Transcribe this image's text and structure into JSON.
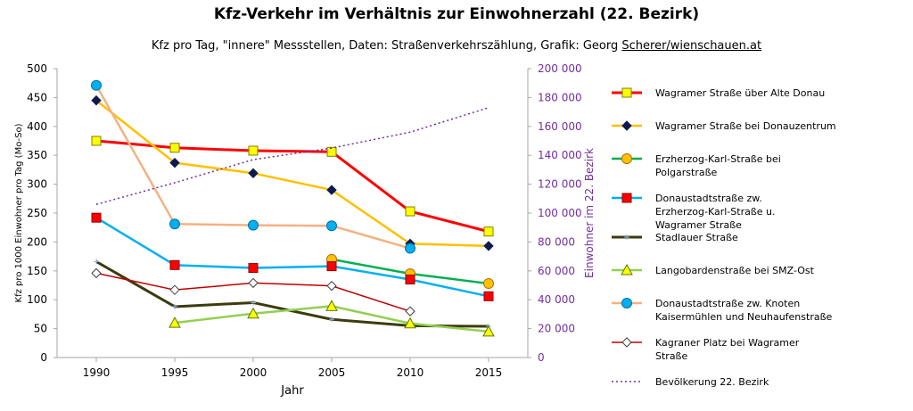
{
  "chart_data": {
    "type": "line",
    "title": "Kfz-Verkehr im Verhältnis zur Einwohnerzahl (22. Bezirk)",
    "subtitle_main": "Kfz pro Tag, \"innere\" Messstellen, Daten: Straßenverkehrszählung, Grafik: Georg",
    "subtitle_credit": "Scherer/wienschauen.at",
    "xlabel": "Jahr",
    "ylabel_left": "Kfz pro 1000 Einwohner pro Tag (Mo-So)",
    "ylabel_right": "Einwohner im 22. Bezirk",
    "x": [
      1990,
      1995,
      2000,
      2005,
      2010,
      2015
    ],
    "x_tick_labels": [
      "1990",
      "1995",
      "2000",
      "2005",
      "2010",
      "2015"
    ],
    "ylim_left": [
      0,
      500
    ],
    "y_ticks_left": [
      "0",
      "50",
      "100",
      "150",
      "200",
      "250",
      "300",
      "350",
      "400",
      "450",
      "500"
    ],
    "ylim_right": [
      0,
      200000
    ],
    "y_ticks_right": [
      "0",
      "20 000",
      "40 000",
      "60 000",
      "80 000",
      "100 000",
      "120 000",
      "140 000",
      "160 000",
      "180 000",
      "200 000"
    ],
    "grid": false,
    "legend_position": "right",
    "series": [
      {
        "name": "Wagramer Straße über Alte Donau",
        "axis": "left",
        "color": "#ff0000",
        "marker": "square",
        "marker_fill": "#ffff00",
        "marker_stroke": "#7f7f00",
        "line_width": 3,
        "values": [
          375,
          363,
          358,
          356,
          253,
          218
        ]
      },
      {
        "name": "Wagramer Straße bei Donauzentrum",
        "axis": "left",
        "color": "#ffc000",
        "marker": "diamond",
        "marker_fill": "#0d1a4d",
        "marker_stroke": "#0d1a4d",
        "line_width": 2.5,
        "values": [
          445,
          337,
          319,
          290,
          197,
          193
        ]
      },
      {
        "name": "Erzherzog-Karl-Straße bei Polgarstraße",
        "axis": "left",
        "color": "#00b050",
        "marker": "circle",
        "marker_fill": "#ffc000",
        "marker_stroke": "#b07000",
        "line_width": 2.5,
        "values": [
          null,
          null,
          null,
          170,
          145,
          128
        ]
      },
      {
        "name": "Donaustadtstraße zw. Erzherzog-Karl-Straße u. Wagramer Straße",
        "axis": "left",
        "color": "#00b0f0",
        "marker": "square",
        "marker_fill": "#ff0000",
        "marker_stroke": "#900000",
        "line_width": 2.5,
        "values": [
          242,
          160,
          155,
          158,
          135,
          106
        ]
      },
      {
        "name": "Stadlauer Straße",
        "axis": "left",
        "color": "#3b3b0f",
        "marker": "star",
        "marker_fill": "#8fb4d9",
        "marker_stroke": "#8fb4d9",
        "line_width": 3,
        "values": [
          166,
          88,
          95,
          66,
          55,
          54
        ]
      },
      {
        "name": "Langobardenstraße bei SMZ-Ost",
        "axis": "left",
        "color": "#92d050",
        "marker": "triangle",
        "marker_fill": "#ffff00",
        "marker_stroke": "#5a7a00",
        "line_width": 2.5,
        "values": [
          null,
          60,
          76,
          89,
          59,
          45
        ]
      },
      {
        "name": "Donaustadtstraße zw. Knoten Kaisermühlen und Neuhaufenstraße",
        "axis": "left",
        "color": "#f4b183",
        "marker": "circle",
        "marker_fill": "#00b0f0",
        "marker_stroke": "#0070a0",
        "line_width": 2.5,
        "values": [
          471,
          231,
          229,
          228,
          189,
          null
        ]
      },
      {
        "name": "Kagraner Platz bei Wagramer Straße",
        "axis": "left",
        "color": "#c00000",
        "marker": "diamond",
        "marker_fill": "#ffffff",
        "marker_stroke": "#404040",
        "line_width": 1.5,
        "values": [
          146,
          117,
          129,
          124,
          80,
          null
        ]
      },
      {
        "name": "Bevölkerung 22. Bezirk",
        "axis": "right",
        "color": "#7030a0",
        "marker": "none",
        "dash": "2,3",
        "line_width": 1.5,
        "values": [
          106000,
          121000,
          137000,
          145000,
          156000,
          173000
        ]
      }
    ]
  }
}
